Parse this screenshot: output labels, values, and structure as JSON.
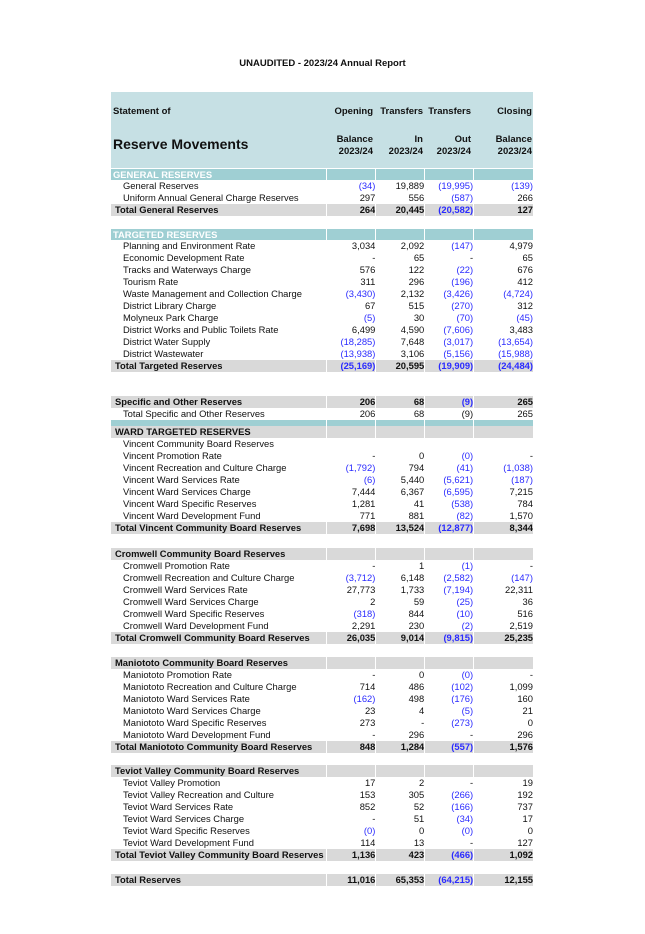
{
  "title": "UNAUDITED - 2023/24 Annual Report",
  "header": {
    "statement_of": "Statement of",
    "reserve_movements": "Reserve Movements",
    "columns": [
      {
        "line1": "Opening",
        "line2": "Balance",
        "line3": "2023/24"
      },
      {
        "line1": "Transfers",
        "line2": "In",
        "line3": "2023/24"
      },
      {
        "line1": "Transfers",
        "line2": "Out",
        "line3": "2023/24"
      },
      {
        "line1": "Closing",
        "line2": "Balance",
        "line3": "2023/24"
      }
    ]
  },
  "colors": {
    "header_bg": "#c6e0e4",
    "section_bg": "#9fcfd3",
    "total_bg": "#d9d9d9",
    "negative": "#2b2bff"
  },
  "rows": [
    {
      "type": "section",
      "label": "GENERAL RESERVES",
      "values": [
        "",
        "",
        "",
        ""
      ]
    },
    {
      "type": "item",
      "label": "General Reserves",
      "values": [
        "(34)",
        "19,889",
        "(19,995)",
        "(139)"
      ]
    },
    {
      "type": "item",
      "label": "Uniform Annual General Charge Reserves",
      "values": [
        "297",
        "556",
        "(587)",
        "266"
      ]
    },
    {
      "type": "total",
      "label": "Total General Reserves",
      "values": [
        "264",
        "20,445",
        "(20,582)",
        "127"
      ]
    },
    {
      "type": "spacer",
      "h": 13
    },
    {
      "type": "section",
      "label": "TARGETED RESERVES",
      "values": [
        "",
        "",
        "",
        ""
      ]
    },
    {
      "type": "item",
      "label": "Planning and Environment Rate",
      "values": [
        "3,034",
        "2,092",
        "(147)",
        "4,979"
      ]
    },
    {
      "type": "item",
      "label": "Economic Development Rate",
      "values": [
        "-",
        "65",
        "-",
        "65"
      ]
    },
    {
      "type": "item",
      "label": "Tracks and Waterways Charge",
      "values": [
        "576",
        "122",
        "(22)",
        "676"
      ]
    },
    {
      "type": "item",
      "label": "Tourism Rate",
      "values": [
        "311",
        "296",
        "(196)",
        "412"
      ]
    },
    {
      "type": "item",
      "label": "Waste Management and Collection Charge",
      "values": [
        "(3,430)",
        "2,132",
        "(3,426)",
        "(4,724)"
      ]
    },
    {
      "type": "item",
      "label": "District Library Charge",
      "values": [
        "67",
        "515",
        "(270)",
        "312"
      ]
    },
    {
      "type": "item",
      "label": "Molyneux Park Charge",
      "values": [
        "(5)",
        "30",
        "(70)",
        "(45)"
      ]
    },
    {
      "type": "item",
      "label": "District Works and Public Toilets Rate",
      "values": [
        "6,499",
        "4,590",
        "(7,606)",
        "3,483"
      ]
    },
    {
      "type": "item",
      "label": "District Water Supply",
      "values": [
        "(18,285)",
        "7,648",
        "(3,017)",
        "(13,654)"
      ]
    },
    {
      "type": "item",
      "label": "District Wastewater",
      "values": [
        "(13,938)",
        "3,106",
        "(5,156)",
        "(15,988)"
      ]
    },
    {
      "type": "total",
      "label": "Total Targeted Reserves",
      "values": [
        "(25,169)",
        "20,595",
        "(19,909)",
        "(24,484)"
      ]
    },
    {
      "type": "spacer",
      "h": 24
    },
    {
      "type": "total",
      "label": "Specific and Other Reserves",
      "values": [
        "206",
        "68",
        "(9)",
        "265"
      ]
    },
    {
      "type": "item",
      "label": "Total Specific and Other Reserves",
      "values": [
        "206",
        "68",
        "(9)",
        "265"
      ],
      "blue_negatives": false
    },
    {
      "type": "bar"
    },
    {
      "type": "ward",
      "label": "WARD TARGETED RESERVES",
      "values": [
        "",
        "",
        "",
        ""
      ]
    },
    {
      "type": "item",
      "label": "Vincent Community Board Reserves",
      "values": [
        "",
        "",
        "",
        ""
      ]
    },
    {
      "type": "item",
      "label": "Vincent Promotion Rate",
      "values": [
        "-",
        "0",
        "(0)",
        "-"
      ]
    },
    {
      "type": "item",
      "label": "Vincent Recreation and Culture Charge",
      "values": [
        "(1,792)",
        "794",
        "(41)",
        "(1,038)"
      ]
    },
    {
      "type": "item",
      "label": "Vincent Ward Services Rate",
      "values": [
        "(6)",
        "5,440",
        "(5,621)",
        "(187)"
      ]
    },
    {
      "type": "item",
      "label": "Vincent Ward Services Charge",
      "values": [
        "7,444",
        "6,367",
        "(6,595)",
        "7,215"
      ]
    },
    {
      "type": "item",
      "label": "Vincent Ward Specific Reserves",
      "values": [
        "1,281",
        "41",
        "(538)",
        "784"
      ]
    },
    {
      "type": "item",
      "label": "Vincent Ward Development Fund",
      "values": [
        "771",
        "881",
        "(82)",
        "1,570"
      ]
    },
    {
      "type": "total",
      "label": "Total Vincent Community Board Reserves",
      "values": [
        "7,698",
        "13,524",
        "(12,877)",
        "8,344"
      ]
    },
    {
      "type": "spacer",
      "h": 14
    },
    {
      "type": "ward",
      "label": "Cromwell Community Board Reserves",
      "values": [
        "",
        "",
        "",
        ""
      ]
    },
    {
      "type": "item",
      "label": "Cromwell Promotion Rate",
      "values": [
        "-",
        "1",
        "(1)",
        "-"
      ]
    },
    {
      "type": "item",
      "label": "Cromwell Recreation and Culture Charge",
      "values": [
        "(3,712)",
        "6,148",
        "(2,582)",
        "(147)"
      ]
    },
    {
      "type": "item",
      "label": "Cromwell Ward Services Rate",
      "values": [
        "27,773",
        "1,733",
        "(7,194)",
        "22,311"
      ]
    },
    {
      "type": "item",
      "label": "Cromwell Ward Services Charge",
      "values": [
        "2",
        "59",
        "(25)",
        "36"
      ]
    },
    {
      "type": "item",
      "label": "Cromwell Ward Specific Reserves",
      "values": [
        "(318)",
        "844",
        "(10)",
        "516"
      ]
    },
    {
      "type": "item",
      "label": "Cromwell Ward Development Fund",
      "values": [
        "2,291",
        "230",
        "(2)",
        "2,519"
      ]
    },
    {
      "type": "total",
      "label": "Total Cromwell Community Board Reserves",
      "values": [
        "26,035",
        "9,014",
        "(9,815)",
        "25,235"
      ]
    },
    {
      "type": "spacer",
      "h": 13
    },
    {
      "type": "ward",
      "label": "Maniototo Community Board Reserves",
      "values": [
        "",
        "",
        "",
        ""
      ]
    },
    {
      "type": "item",
      "label": "Maniototo Promotion Rate",
      "values": [
        "-",
        "0",
        "(0)",
        "-"
      ]
    },
    {
      "type": "item",
      "label": "Maniototo Recreation and Culture Charge",
      "values": [
        "714",
        "486",
        "(102)",
        "1,099"
      ]
    },
    {
      "type": "item",
      "label": "Maniototo Ward Services Rate",
      "values": [
        "(162)",
        "498",
        "(176)",
        "160"
      ]
    },
    {
      "type": "item",
      "label": "Maniototo Ward Services Charge",
      "values": [
        "23",
        "4",
        "(5)",
        "21"
      ]
    },
    {
      "type": "item",
      "label": "Maniototo Ward Specific Reserves",
      "values": [
        "273",
        "-",
        "(273)",
        "0"
      ]
    },
    {
      "type": "item",
      "label": "Maniototo Ward Development Fund",
      "values": [
        "-",
        "296",
        "-",
        "296"
      ]
    },
    {
      "type": "total",
      "label": "Total Maniototo Community Board Reserves",
      "values": [
        "848",
        "1,284",
        "(557)",
        "1,576"
      ]
    },
    {
      "type": "spacer",
      "h": 12
    },
    {
      "type": "ward",
      "label": "Teviot Valley Community Board Reserves",
      "values": [
        "",
        "",
        "",
        ""
      ]
    },
    {
      "type": "item",
      "label": "Teviot Valley Promotion",
      "values": [
        "17",
        "2",
        "-",
        "19"
      ]
    },
    {
      "type": "item",
      "label": "Teviot Valley Recreation and Culture",
      "values": [
        "153",
        "305",
        "(266)",
        "192"
      ]
    },
    {
      "type": "item",
      "label": "Teviot Ward Services Rate",
      "values": [
        "852",
        "52",
        "(166)",
        "737"
      ]
    },
    {
      "type": "item",
      "label": "Teviot Ward Services Charge",
      "values": [
        "-",
        "51",
        "(34)",
        "17"
      ]
    },
    {
      "type": "item",
      "label": "Teviot Ward Specific Reserves",
      "values": [
        "(0)",
        "0",
        "(0)",
        "0"
      ]
    },
    {
      "type": "item",
      "label": "Teviot Ward Development Fund",
      "values": [
        "114",
        "13",
        "-",
        "127"
      ]
    },
    {
      "type": "total",
      "label": "Total Teviot Valley Community Board Reserves",
      "values": [
        "1,136",
        "423",
        "(466)",
        "1,092"
      ]
    },
    {
      "type": "spacer",
      "h": 13
    },
    {
      "type": "total",
      "label": "Total Reserves",
      "values": [
        "11,016",
        "65,353",
        "(64,215)",
        "12,155"
      ]
    }
  ]
}
